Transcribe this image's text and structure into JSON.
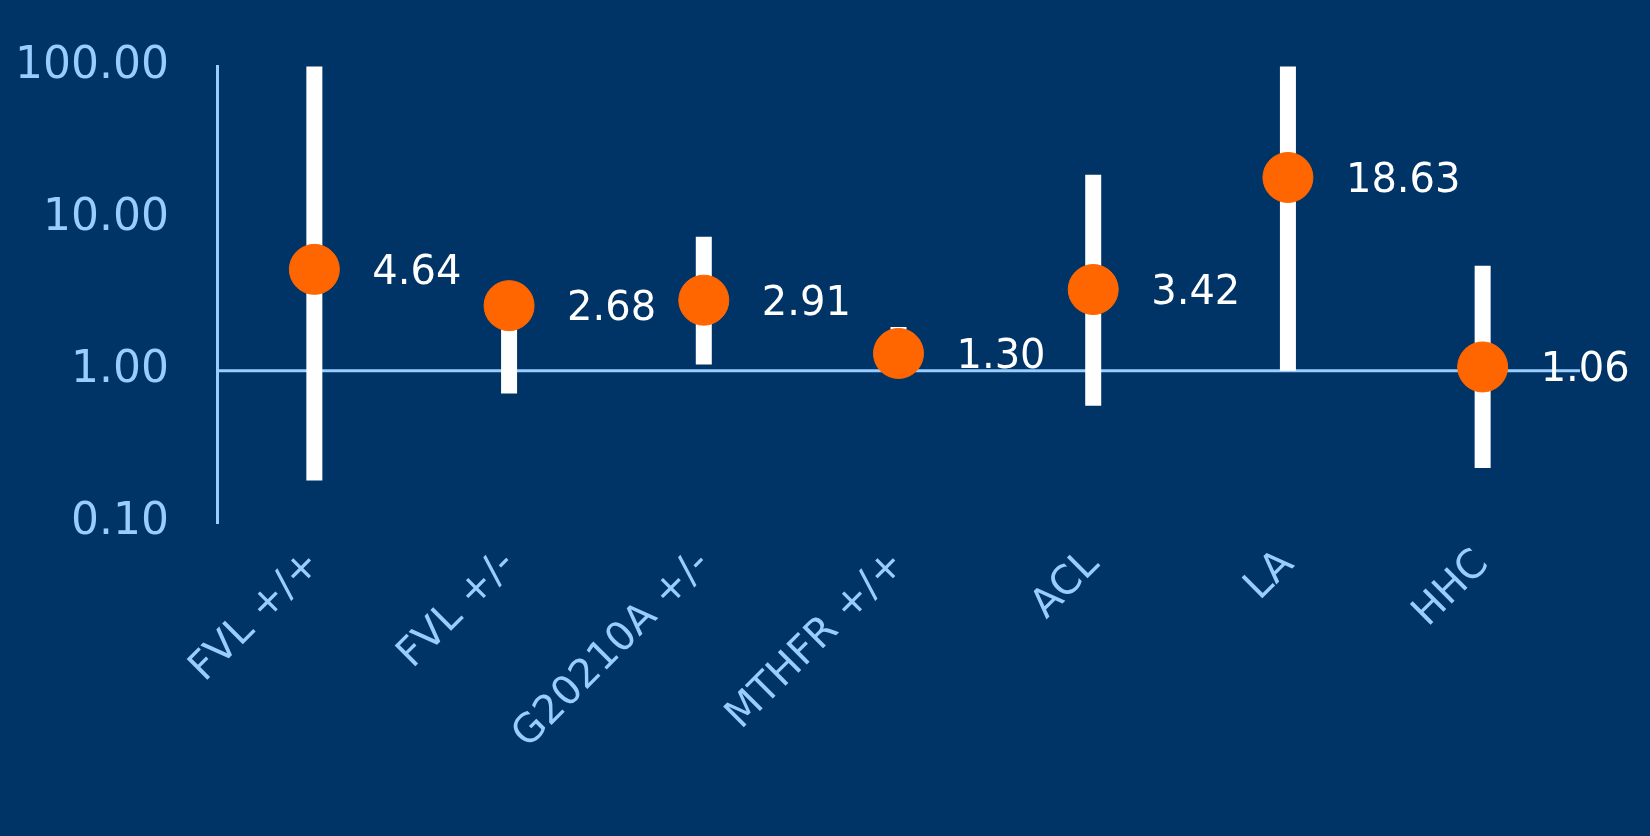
{
  "chart_data": {
    "type": "scatter",
    "categories": [
      "FVL +/+",
      "FVL +/-",
      "G20210A +/-",
      "MTHFR +/+",
      "ACL",
      "LA",
      "HHC"
    ],
    "values": [
      4.64,
      2.68,
      2.91,
      1.3,
      3.42,
      18.63,
      1.06
    ],
    "color": "#ff6600",
    "errors": [
      [
        0.19,
        100
      ],
      [
        0.71,
        2.68
      ],
      [
        1.1,
        7.6
      ],
      [
        1.3,
        1.94
      ],
      [
        0.59,
        19.4
      ],
      [
        1.0,
        100
      ],
      [
        0.23,
        4.9
      ]
    ],
    "log": "y",
    "ylim": [
      0.1,
      100
    ],
    "yticks": [
      {
        "value": 0.1,
        "label": "0.10"
      },
      {
        "value": 1,
        "label": "1.00"
      },
      {
        "value": 10,
        "label": "10.00"
      },
      {
        "value": 100,
        "label": "100.00"
      }
    ],
    "ref_lines": [
      {
        "axis": "y",
        "value": 1,
        "color": "#99ccff"
      }
    ],
    "value_labels": [
      "4.64",
      "2.68",
      "2.91",
      "1.30",
      "3.42",
      "18.63",
      "1.06"
    ],
    "marker": "circle"
  }
}
